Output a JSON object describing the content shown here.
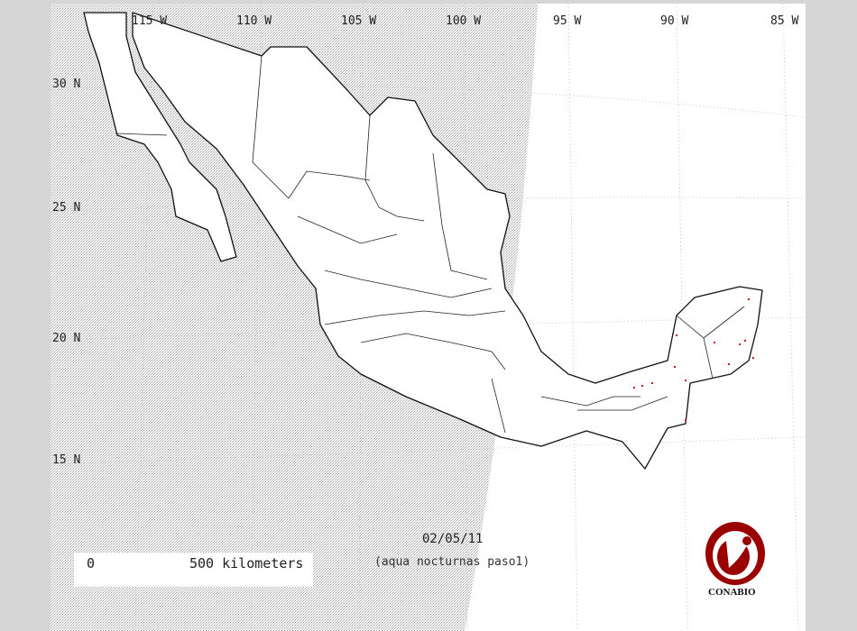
{
  "map": {
    "longitude_labels": [
      "115 W",
      "110 W",
      "105 W",
      "100 W",
      "95 W",
      "90 W",
      "85 W"
    ],
    "latitude_labels": [
      "30 N",
      "25 N",
      "20 N",
      "15 N"
    ],
    "date": "02/05/11",
    "subtitle": "(aqua nocturnas paso1)",
    "scale": {
      "start_label": "0",
      "end_label": "500 kilometers",
      "segments": 5
    },
    "logo": {
      "name": "conabio-logo-icon",
      "text": "CONABIO"
    },
    "hotspot_count": 13,
    "colors": {
      "hotspot": "#d01010",
      "logo": "#9b0000",
      "outline": "#111111",
      "swath": "#bdbdbd",
      "frame_bg": "#d6d6d6"
    }
  }
}
